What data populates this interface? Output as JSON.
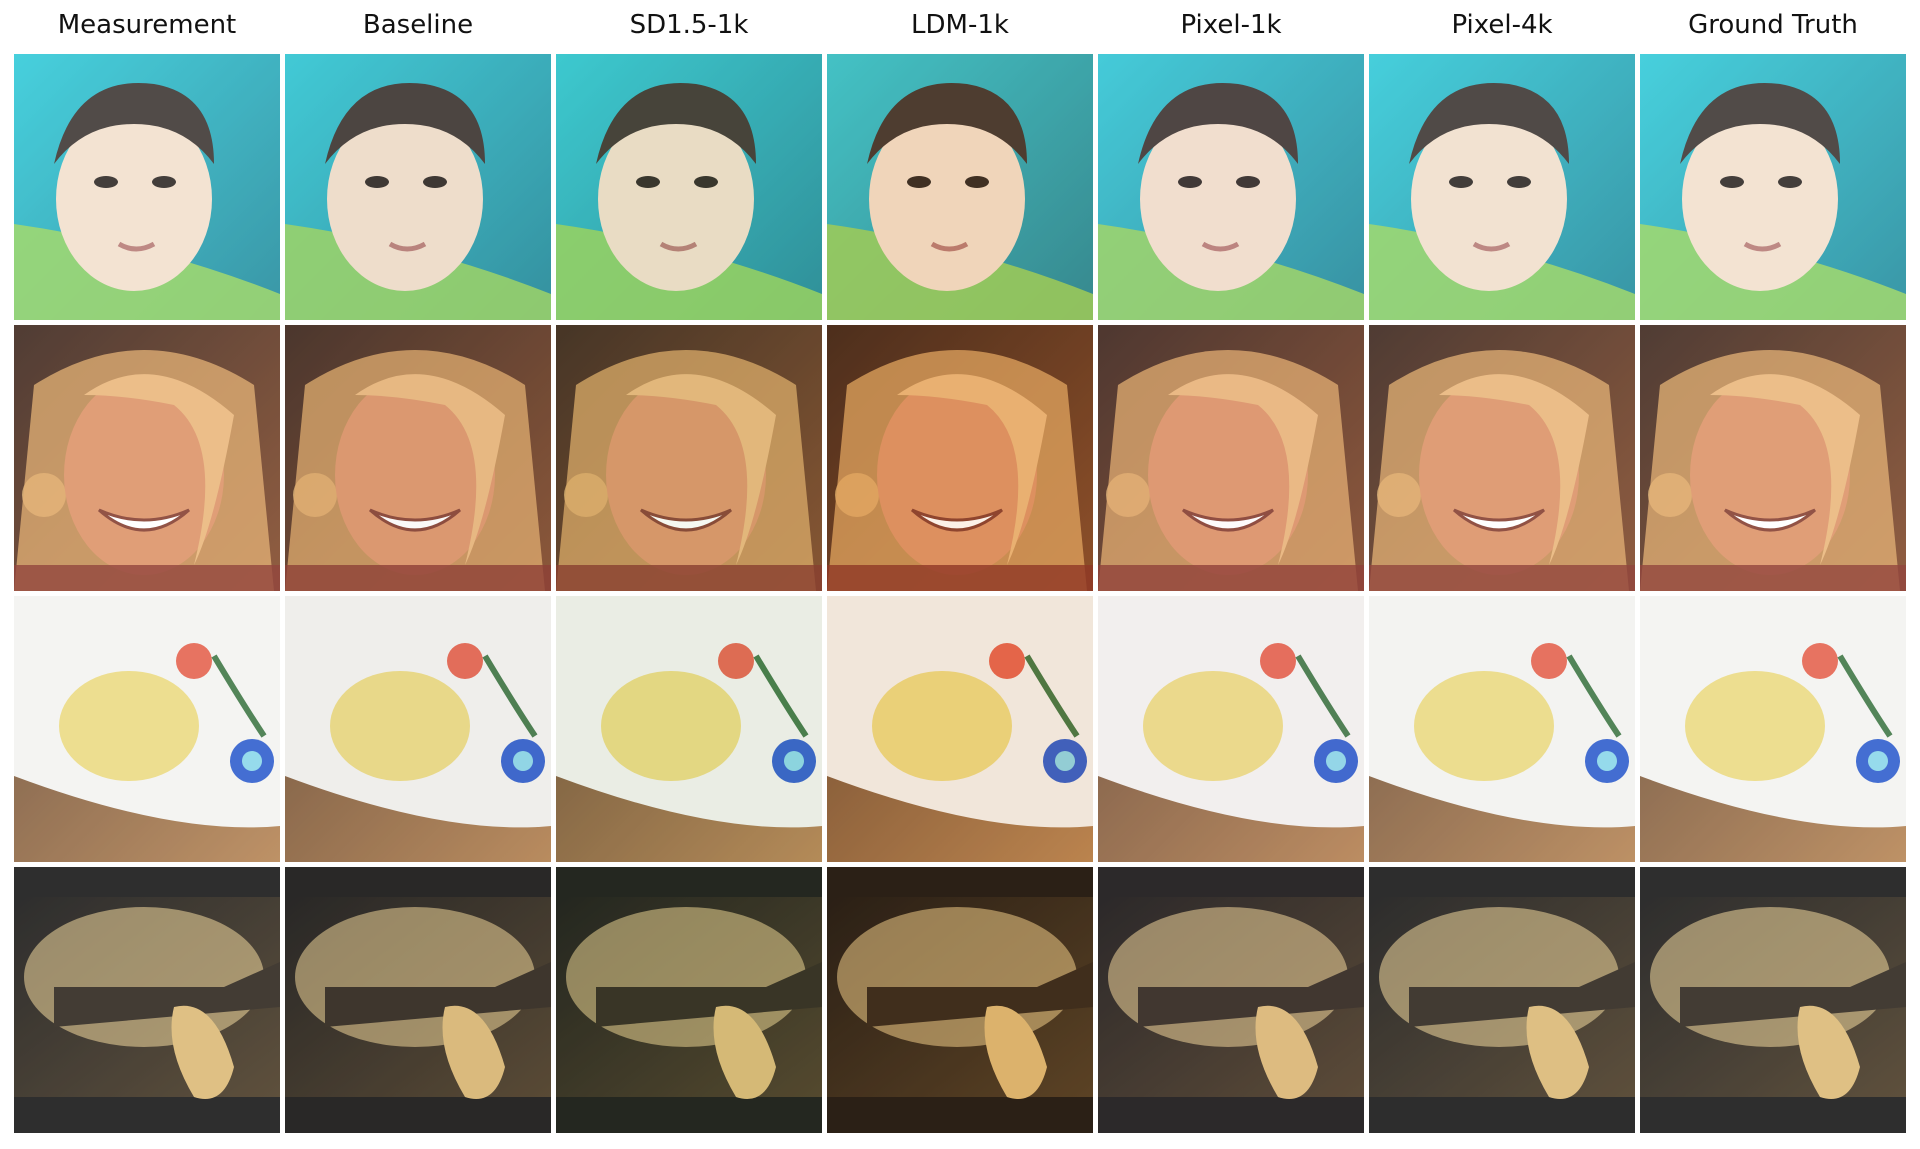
{
  "figure": {
    "columns": [
      {
        "key": "measurement",
        "label": "Measurement"
      },
      {
        "key": "baseline",
        "label": "Baseline"
      },
      {
        "key": "sd15_1k",
        "label": "SD1.5-1k"
      },
      {
        "key": "ldm_1k",
        "label": "LDM-1k"
      },
      {
        "key": "pixel_1k",
        "label": "Pixel-1k"
      },
      {
        "key": "pixel_4k",
        "label": "Pixel-4k"
      },
      {
        "key": "ground_truth",
        "label": "Ground Truth"
      }
    ],
    "rows": [
      {
        "scene": "baby-face",
        "bg": [
          "#1fc6d6",
          "#0f7f92"
        ],
        "subject": "#f1ddc8",
        "accent": "#8fd14f"
      },
      {
        "scene": "smiling-woman",
        "bg": [
          "#2a1208",
          "#7a3b18"
        ],
        "subject": "#d9895a",
        "accent": "#e0a35a"
      },
      {
        "scene": "spaghetti-plate",
        "bg": [
          "#5a3a22",
          "#b07a45"
        ],
        "subject": "#f2f2ef",
        "accent": "#e9d46a"
      },
      {
        "scene": "blade-closeup",
        "bg": [
          "#000000",
          "#3b2a12"
        ],
        "subject": "#d8b36a",
        "accent": "#f1d18a"
      }
    ],
    "tints": {
      "measurement": "#ffffff",
      "baseline": "#e6e0d6",
      "sd15_1k": "#c9d9b0",
      "ldm_1k": "#f0b07a",
      "pixel_1k": "#f2e6ea",
      "pixel_4k": "#fafafa",
      "ground_truth": "#ffffff"
    }
  }
}
